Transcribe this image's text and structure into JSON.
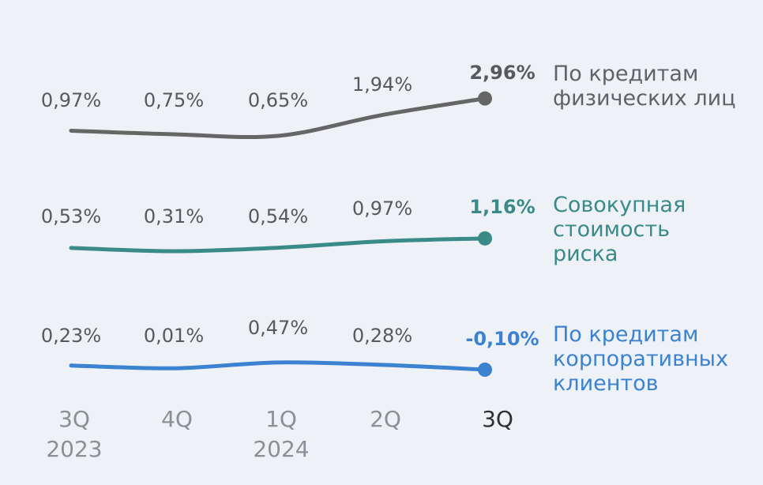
{
  "chart_data": {
    "type": "line",
    "categories": [
      "3Q 2023",
      "4Q",
      "1Q 2024",
      "2Q",
      "3Q"
    ],
    "x_labels": [
      {
        "line1": "3Q",
        "line2": "2023"
      },
      {
        "line1": "4Q",
        "line2": ""
      },
      {
        "line1": "1Q",
        "line2": "2024"
      },
      {
        "line1": "2Q",
        "line2": ""
      },
      {
        "line1": "3Q",
        "line2": ""
      }
    ],
    "series": [
      {
        "name": "По кредитам\nфизических лиц",
        "color": "#666666",
        "values": [
          0.97,
          0.75,
          0.65,
          1.94,
          2.96
        ],
        "labels": [
          "0,97%",
          "0,75%",
          "0,65%",
          "1,94%",
          "2,96%"
        ]
      },
      {
        "name": "Совокупная\nстоимость\nриска",
        "color": "#3a8a8a",
        "values": [
          0.53,
          0.31,
          0.54,
          0.97,
          1.16
        ],
        "labels": [
          "0,53%",
          "0,31%",
          "0,54%",
          "0,97%",
          "1,16%"
        ]
      },
      {
        "name": "По кредитам\nкорпоративных\nклиентов",
        "color": "#3b82d0",
        "values": [
          0.23,
          0.01,
          0.47,
          0.28,
          -0.1
        ],
        "labels": [
          "0,23%",
          "0,01%",
          "0,47%",
          "0,28%",
          "-0,10%"
        ]
      }
    ]
  }
}
